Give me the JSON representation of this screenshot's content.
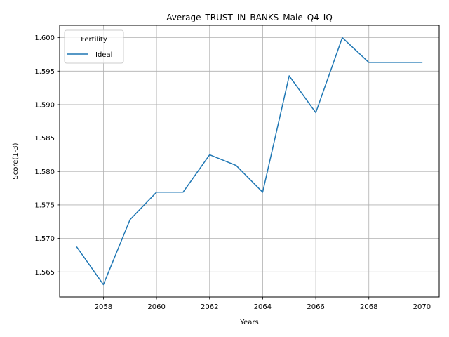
{
  "chart_data": {
    "type": "line",
    "title": "Average_TRUST_IN_BANKS_Male_Q4_IQ",
    "xlabel": "Years",
    "ylabel": "Score(1-3)",
    "xlim": [
      2056.35,
      2070.65
    ],
    "ylim": [
      1.56125,
      1.60185
    ],
    "xticks": [
      2058,
      2060,
      2062,
      2064,
      2066,
      2068,
      2070
    ],
    "yticks": [
      1.565,
      1.57,
      1.575,
      1.58,
      1.585,
      1.59,
      1.595,
      1.6
    ],
    "ytick_labels": [
      "1.565",
      "1.570",
      "1.575",
      "1.580",
      "1.585",
      "1.590",
      "1.595",
      "1.600"
    ],
    "grid": true,
    "legend": {
      "title": "Fertility",
      "placement": "top-left"
    },
    "series": [
      {
        "name": "Ideal",
        "color": "#1f77b4",
        "x": [
          2057,
          2058,
          2059,
          2060,
          2061,
          2062,
          2063,
          2064,
          2065,
          2066,
          2067,
          2068,
          2069,
          2070
        ],
        "y": [
          1.5687,
          1.5631,
          1.5728,
          1.5769,
          1.5769,
          1.5825,
          1.5809,
          1.5769,
          1.5943,
          1.5888,
          1.6,
          1.5963,
          1.5963,
          1.5963
        ]
      }
    ]
  }
}
